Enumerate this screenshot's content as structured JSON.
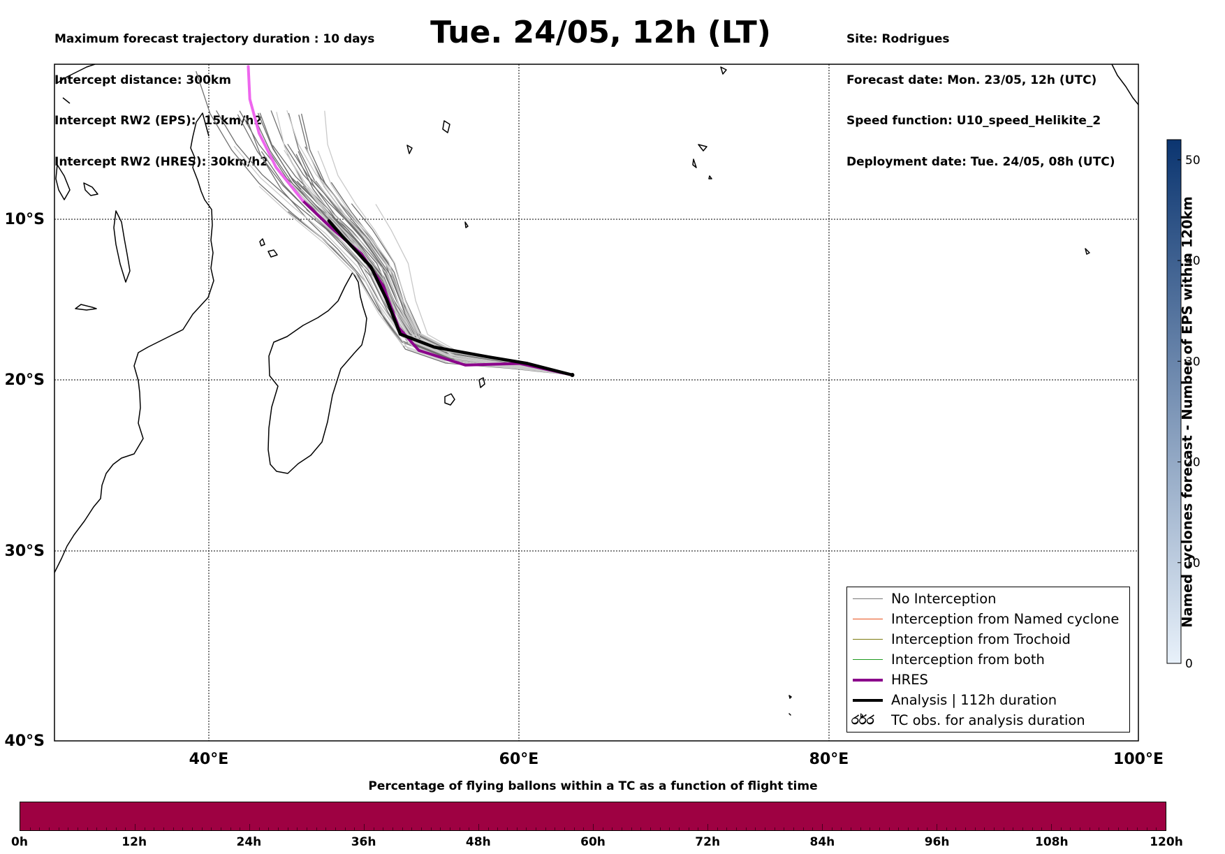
{
  "header": {
    "left_lines": [
      "Maximum forecast trajectory duration : 10 days",
      "Intercept distance: 300km",
      "Intercept RW2 (EPS):  15km/h2",
      "Intercept RW2 (HRES): 30km/h2"
    ],
    "title": "Tue. 24/05, 12h (LT)",
    "right_lines": [
      "Site: Rodrigues",
      "Forecast date: Mon. 23/05, 12h (UTC)",
      "Speed function: U10_speed_Helikite_2",
      "Deployment date: Tue. 24/05, 08h (UTC)"
    ]
  },
  "map": {
    "lat_labels": [
      "10°S",
      "20°S",
      "30°S",
      "40°S"
    ],
    "lon_labels": [
      "40°E",
      "60°E",
      "80°E",
      "100°E"
    ],
    "origin": {
      "lon": 63.4,
      "lat": -19.7
    },
    "analysis_track": [
      [
        63.4,
        -19.7
      ],
      [
        60.5,
        -19.0
      ],
      [
        58.0,
        -18.6
      ],
      [
        54.5,
        -18.0
      ],
      [
        52.3,
        -17.2
      ],
      [
        51.4,
        -15.0
      ],
      [
        50.4,
        -13.0
      ],
      [
        48.5,
        -11.0
      ],
      [
        47.7,
        -10.1
      ]
    ],
    "hres_track": [
      [
        63.4,
        -19.7
      ],
      [
        60.0,
        -19.0
      ],
      [
        56.5,
        -19.1
      ],
      [
        53.5,
        -18.2
      ],
      [
        52.2,
        -16.8
      ],
      [
        51.2,
        -14.2
      ],
      [
        49.8,
        -12.2
      ],
      [
        47.8,
        -10.5
      ],
      [
        46.0,
        -8.8
      ],
      [
        44.3,
        -6.7
      ],
      [
        43.2,
        -4.5
      ],
      [
        42.6,
        -2.3
      ],
      [
        42.5,
        -0.2
      ]
    ]
  },
  "legend": {
    "items": [
      {
        "label": "No Interception",
        "color": "#777777",
        "width": 1.2
      },
      {
        "label": "Interception from Named cyclone",
        "color": "#e8501a",
        "width": 1.2
      },
      {
        "label": "Interception from Trochoid",
        "color": "#7c7a10",
        "width": 1.2
      },
      {
        "label": "Interception from both",
        "color": "#1f9a1f",
        "width": 1.2
      },
      {
        "label": "HRES",
        "color": "#8b008b",
        "width": 4
      },
      {
        "label": "Analysis | 112h duration",
        "color": "#000000",
        "width": 4
      }
    ],
    "tc_symbol": "ර්රර",
    "tc_label": "TC obs. for analysis duration"
  },
  "colorbar": {
    "title": "Named cyclones forecast - Number of EPS within 120km",
    "ticks": [
      "0",
      "10",
      "20",
      "30",
      "40",
      "50"
    ],
    "min": 0,
    "max": 52,
    "color_low": "#e8f1fa",
    "color_high": "#0b3570"
  },
  "bottom": {
    "title": "Percentage of flying ballons within a TC as a function of flight time",
    "bar_color": "#9e0142",
    "ticks": [
      "0h",
      "12h",
      "24h",
      "36h",
      "48h",
      "60h",
      "72h",
      "84h",
      "96h",
      "108h",
      "120h"
    ]
  }
}
